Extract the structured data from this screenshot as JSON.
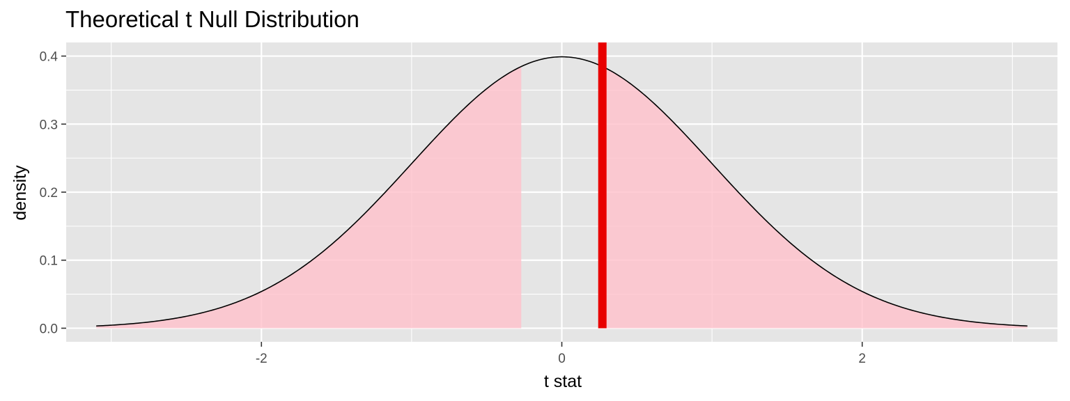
{
  "chart_data": {
    "type": "area",
    "title": "Theoretical t Null Distribution",
    "xlabel": "t stat",
    "ylabel": "density",
    "xlim": [
      -3.3,
      3.3
    ],
    "ylim": [
      -0.02,
      0.42
    ],
    "x_ticks": [
      -2,
      0,
      2
    ],
    "x_tick_labels": [
      "-2",
      "0",
      "2"
    ],
    "y_ticks": [
      0.0,
      0.1,
      0.2,
      0.3,
      0.4
    ],
    "y_tick_labels": [
      "0.0",
      "0.1",
      "0.2",
      "0.3",
      "0.4"
    ],
    "grid": true,
    "series": [
      {
        "type": "line",
        "x": [
          -3.1,
          -2.8,
          -2.6,
          -2.4,
          -2.2,
          -2.0,
          -1.8,
          -1.6,
          -1.4,
          -1.2,
          -1.0,
          -0.8,
          -0.6,
          -0.4,
          -0.2,
          0.0,
          0.2,
          0.4,
          0.6,
          0.8,
          1.0,
          1.2,
          1.4,
          1.6,
          1.8,
          2.0,
          2.2,
          2.4,
          2.6,
          2.8,
          3.1
        ],
        "y": [
          0.0033,
          0.0079,
          0.0136,
          0.0224,
          0.0355,
          0.054,
          0.079,
          0.1109,
          0.1497,
          0.1942,
          0.242,
          0.2897,
          0.3332,
          0.3683,
          0.391,
          0.3989,
          0.391,
          0.3683,
          0.3332,
          0.2897,
          0.242,
          0.1942,
          0.1497,
          0.1109,
          0.079,
          0.054,
          0.0355,
          0.0224,
          0.0136,
          0.0079,
          0.0033
        ],
        "color": "#000000"
      }
    ],
    "shaded_regions": [
      {
        "from": -3.1,
        "to": -0.27,
        "color": "#ffc0cb"
      },
      {
        "from": 0.27,
        "to": 3.1,
        "color": "#ffc0cb"
      }
    ],
    "observed_line": {
      "x": 0.27,
      "color": "#e80000"
    },
    "colors": {
      "panel_background": "#e5e5e5",
      "grid": "#ffffff",
      "shade": "#ffc0cb",
      "observed": "#e80000",
      "curve": "#000000"
    }
  }
}
